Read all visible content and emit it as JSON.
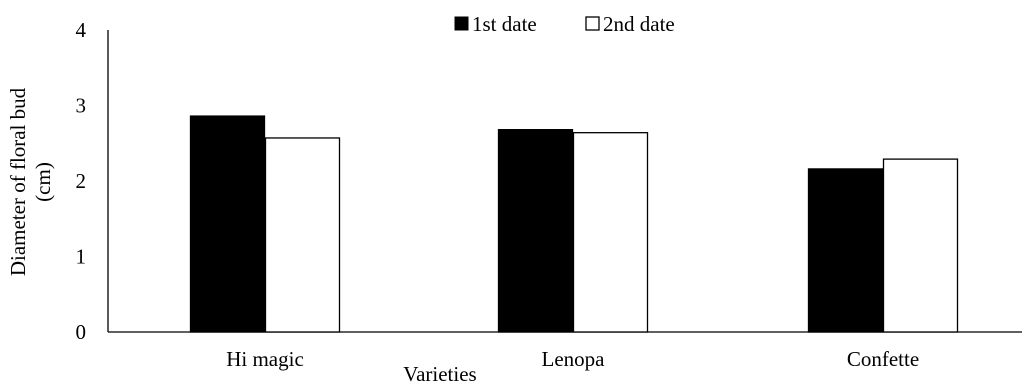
{
  "chart_data": {
    "type": "bar",
    "categories": [
      "Hi magic",
      "Lenopa",
      "Confette"
    ],
    "series": [
      {
        "name": "1st date",
        "values": [
          2.86,
          2.68,
          2.16
        ],
        "color": "#000000"
      },
      {
        "name": "2nd date",
        "values": [
          2.57,
          2.64,
          2.29
        ],
        "color": "#ffffff"
      }
    ],
    "xlabel": "Varieties",
    "ylabel_line1": "Diameter of floral bud",
    "ylabel_line2": "(cm)",
    "ylim": [
      0,
      4
    ],
    "yticks": [
      "0",
      "1",
      "2",
      "3",
      "4"
    ],
    "grid": false,
    "legend_position": "top-center"
  }
}
